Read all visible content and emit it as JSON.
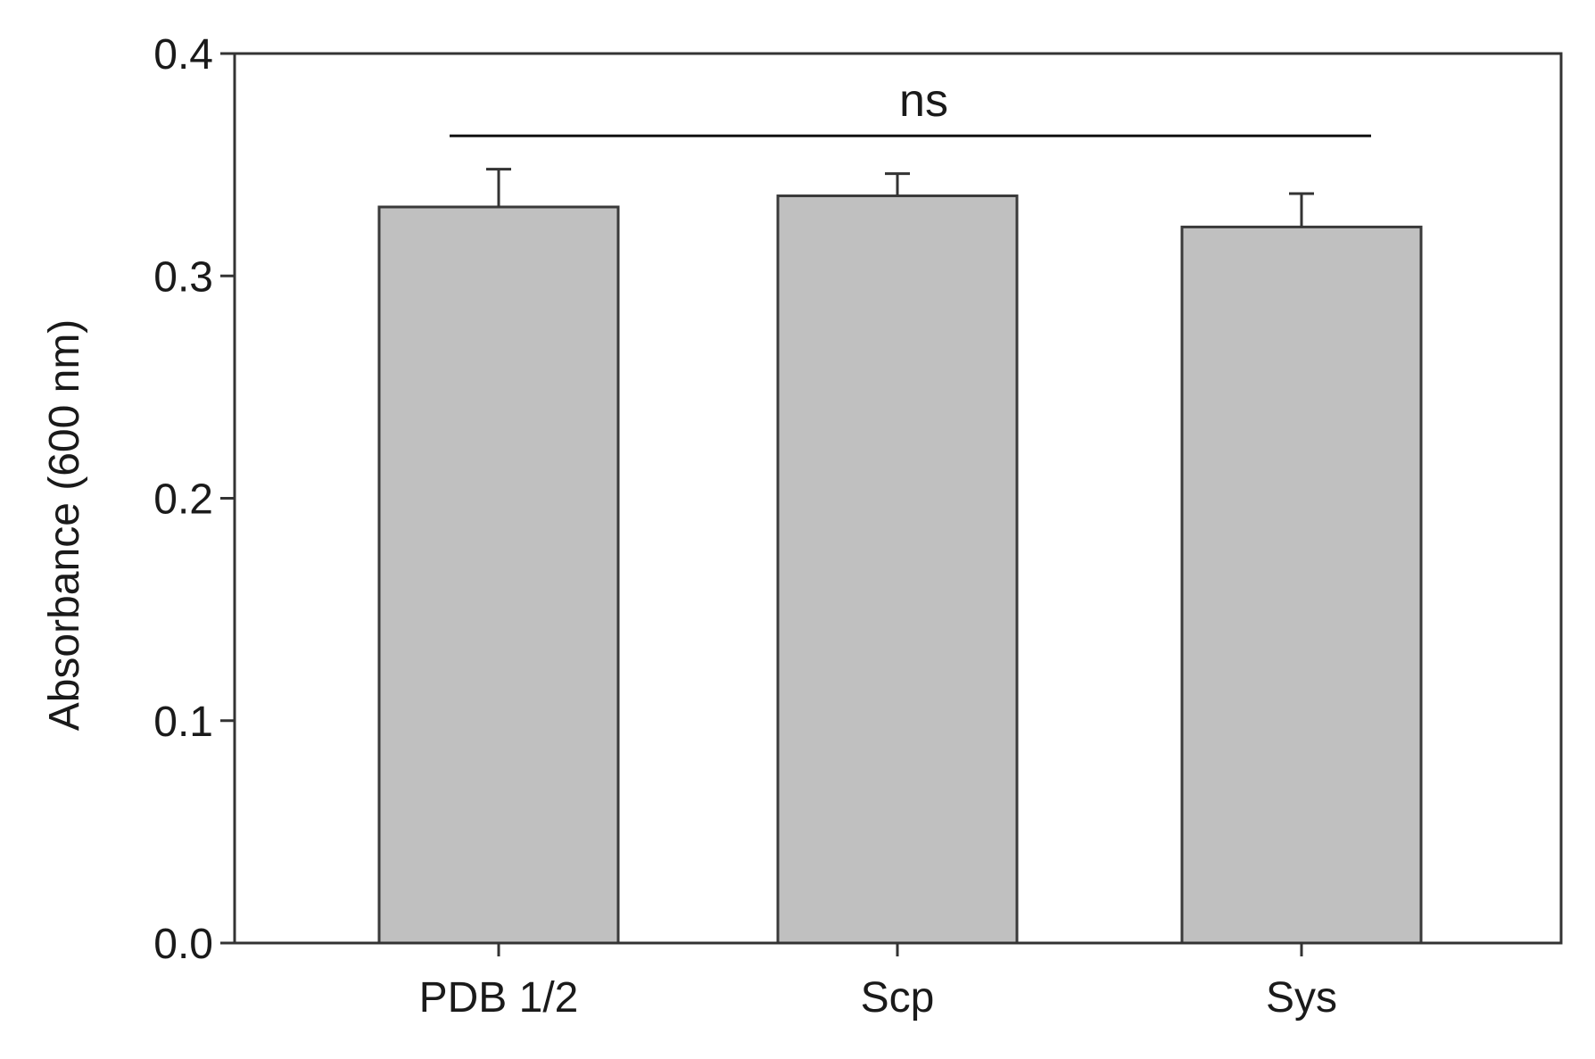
{
  "chart_data": {
    "type": "bar",
    "title": "",
    "xlabel": "",
    "ylabel": "Absorbance (600 nm)",
    "ylim": [
      0,
      0.4
    ],
    "yticks": [
      "0.0",
      "0.1",
      "0.2",
      "0.3",
      "0.4"
    ],
    "categories": [
      "PDB 1/2",
      "Scp",
      "Sys"
    ],
    "values": [
      0.331,
      0.336,
      0.322
    ],
    "errors": [
      0.017,
      0.01,
      0.015
    ],
    "error_bars": "upper",
    "grid": false,
    "legend": "none",
    "bar_color": "#c0c0c0",
    "bar_edge_color": "#3a3a3a",
    "annotation": {
      "text": "ns",
      "y": 0.363,
      "spans": [
        "PDB 1/2",
        "Sys"
      ]
    }
  }
}
